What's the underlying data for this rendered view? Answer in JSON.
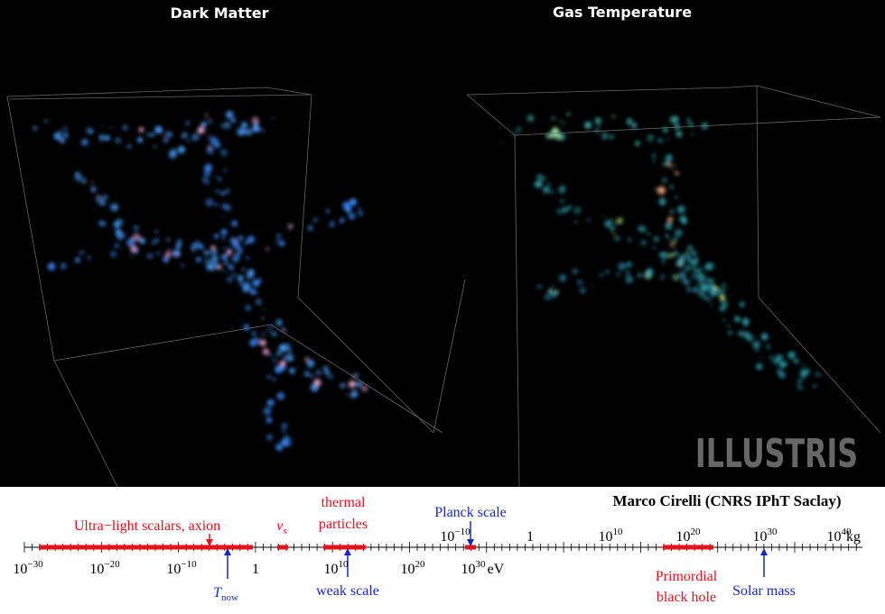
{
  "panels": [
    {
      "title": "Dark Matter"
    },
    {
      "title": "Gas Temperature"
    }
  ],
  "watermark": "ILLUSTRIS",
  "scale": {
    "credit": "Marco Cirelli (CNRS IPhT Saclay)",
    "ev_ticks": [
      {
        "base": "10",
        "exp": "−30"
      },
      {
        "base": "10",
        "exp": "−20"
      },
      {
        "base": "10",
        "exp": "−10"
      },
      {
        "base": "1"
      },
      {
        "base": "10",
        "exp": "10"
      },
      {
        "base": "10",
        "exp": "20"
      },
      {
        "base": "10",
        "exp": "30"
      }
    ],
    "ev_unit": "eV",
    "kg_ticks": [
      {
        "base": "10",
        "exp": "−10"
      },
      {
        "base": "1"
      },
      {
        "base": "10",
        "exp": "10"
      },
      {
        "base": "10",
        "exp": "20"
      },
      {
        "base": "10",
        "exp": "30"
      },
      {
        "base": "10",
        "exp": "40"
      }
    ],
    "kg_unit": "kg",
    "labels": [
      {
        "lines": [
          "Ultra−light scalars, axion"
        ],
        "color": "#e8101a"
      },
      {
        "main": "ν",
        "sub": "s",
        "color": "#e8101a"
      },
      {
        "lines": [
          "thermal",
          "particles"
        ],
        "color": "#e8101a"
      },
      {
        "lines": [
          "Planck scale"
        ],
        "color": "#1428c8"
      },
      {
        "main": "T",
        "sub": "now",
        "color": "#1428c8"
      },
      {
        "lines": [
          "weak scale"
        ],
        "color": "#1428c8"
      },
      {
        "lines": [
          "Primordial",
          "black hole"
        ],
        "color": "#e8101a"
      },
      {
        "lines": [
          "Solar mass"
        ],
        "color": "#1428c8"
      }
    ]
  }
}
